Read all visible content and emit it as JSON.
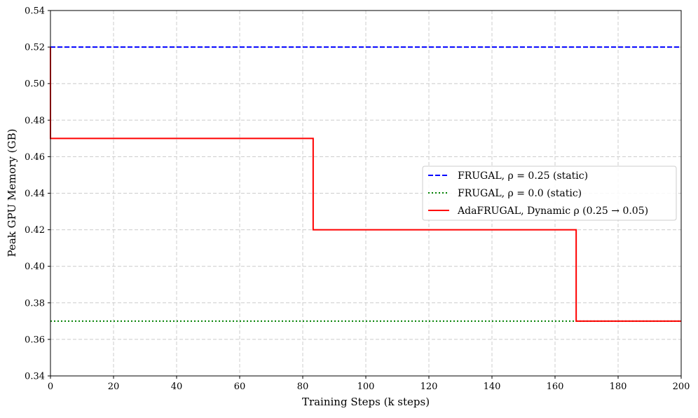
{
  "chart_data": {
    "type": "line",
    "xlabel": "Training Steps (k steps)",
    "ylabel": "Peak GPU Memory (GB)",
    "xlim": [
      0,
      200
    ],
    "ylim": [
      0.34,
      0.54
    ],
    "xticks": [
      0,
      20,
      40,
      60,
      80,
      100,
      120,
      140,
      160,
      180,
      200
    ],
    "yticks": [
      0.34,
      0.36,
      0.38,
      {
        "value": 0.4,
        "label": "0.40"
      },
      0.42,
      0.44,
      0.46,
      0.48,
      {
        "value": 0.5,
        "label": "0.50"
      },
      0.52,
      0.54
    ],
    "grid": true,
    "legend": "center right",
    "series": [
      {
        "name": "FRUGAL, ρ = 0.25 (static)",
        "color": "#0000ff",
        "style": "dashed",
        "x": [
          0,
          200
        ],
        "values": [
          0.52,
          0.52
        ]
      },
      {
        "name": "FRUGAL, ρ = 0.0 (static)",
        "color": "#008000",
        "style": "dotted",
        "x": [
          0,
          200
        ],
        "values": [
          0.37,
          0.37
        ]
      },
      {
        "name": "AdaFRUGAL, Dynamic ρ (0.25 → 0.05)",
        "color": "#ff0000",
        "style": "solid",
        "x": [
          0,
          0,
          83.3,
          83.3,
          166.7,
          166.7,
          200
        ],
        "values": [
          0.52,
          0.47,
          0.47,
          0.42,
          0.42,
          0.37,
          0.37
        ]
      }
    ]
  }
}
